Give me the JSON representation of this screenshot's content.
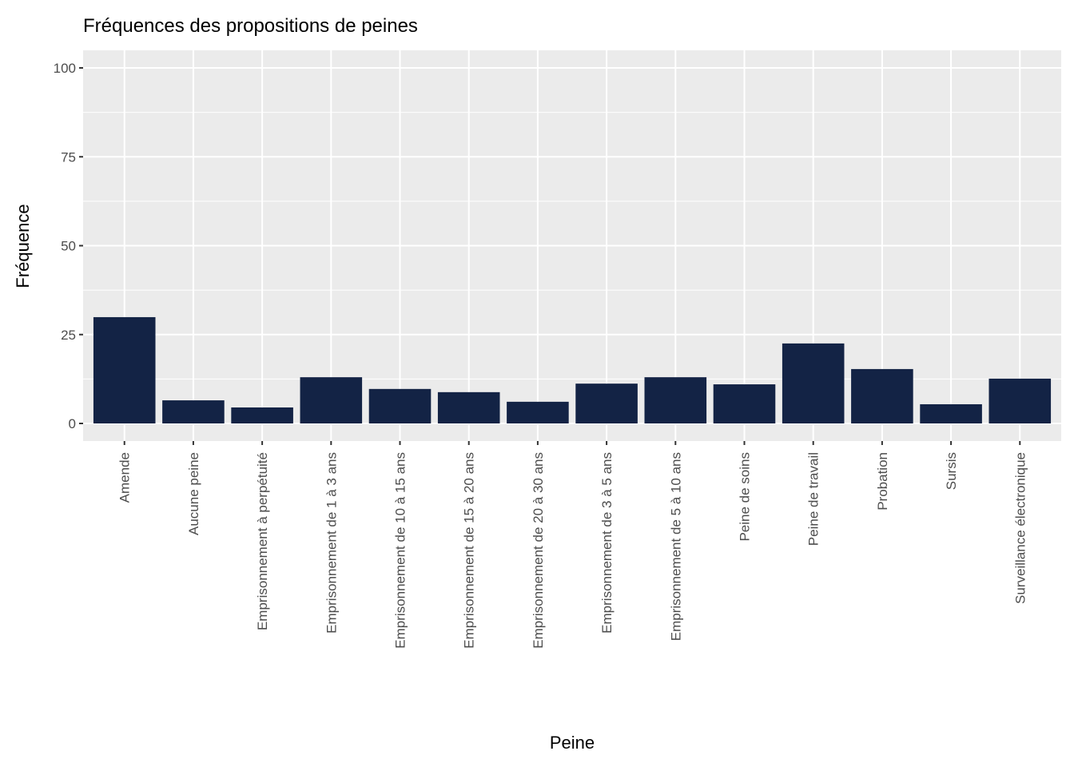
{
  "chart_data": {
    "type": "bar",
    "title": "Fréquences des propositions de peines",
    "xlabel": "Peine",
    "ylabel": "Fréquence",
    "ylim": [
      0,
      100
    ],
    "yticks": [
      0,
      25,
      50,
      75,
      100
    ],
    "grid": true,
    "bar_color": "#132345",
    "categories": [
      "Amende",
      "Aucune peine",
      "Emprisonnement à perpétuité",
      "Emprisonnement de 1 à 3 ans",
      "Emprisonnement de 10 à 15 ans",
      "Emprisonnement de 15 à 20 ans",
      "Emprisonnement de 20 à 30 ans",
      "Emprisonnement de 3 à 5 ans",
      "Emprisonnement de 5 à 10 ans",
      "Peine de soins",
      "Peine de travail",
      "Probation",
      "Sursis",
      "Surveillance électronique"
    ],
    "values": [
      29.9,
      6.5,
      4.5,
      13.0,
      9.7,
      8.8,
      6.1,
      11.2,
      13.0,
      11.0,
      22.5,
      15.3,
      5.4,
      12.6
    ]
  }
}
